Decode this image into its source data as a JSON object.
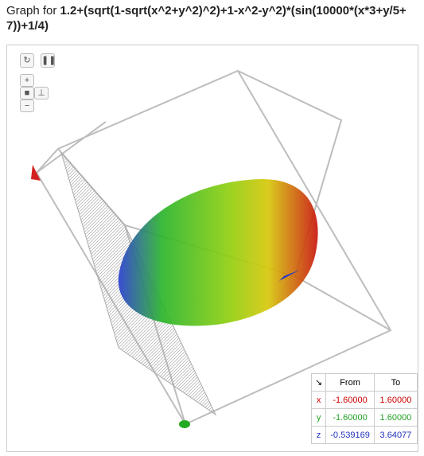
{
  "header": {
    "prefix": "Graph for",
    "expression": "1.2+(sqrt(1-sqrt(x^2+y^2)^2)+1-x^2-y^2)*(sin(10000*(x*3+y/5+7))+1/4)"
  },
  "range_table": {
    "columns": [
      "From",
      "To"
    ],
    "rows": [
      {
        "axis": "x",
        "from": "-1.60000",
        "to": "1.60000"
      },
      {
        "axis": "y",
        "from": "-1.60000",
        "to": "1.60000"
      },
      {
        "axis": "z",
        "from": "-0.539169",
        "to": "3.64077"
      }
    ]
  }
}
